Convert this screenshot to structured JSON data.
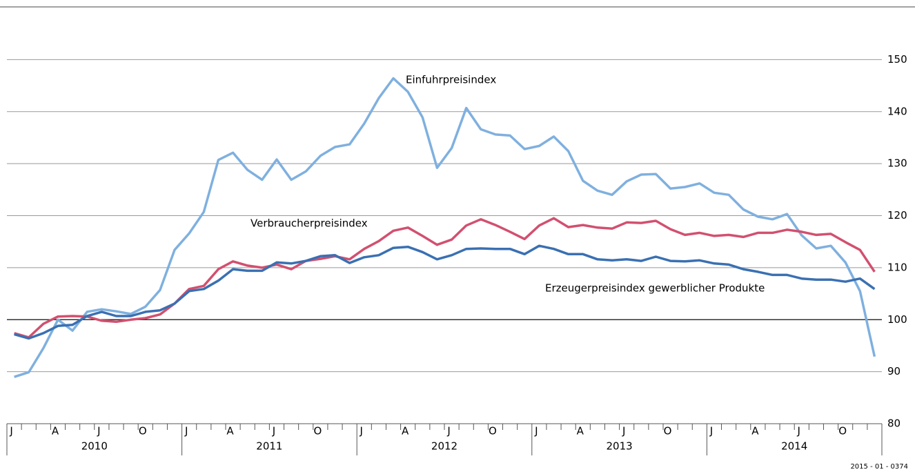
{
  "chart_data": {
    "type": "line",
    "categories": [
      "J",
      null,
      null,
      "A",
      null,
      null,
      "J",
      null,
      null,
      "O",
      null,
      null,
      "J",
      null,
      null,
      "A",
      null,
      null,
      "J",
      null,
      null,
      "O",
      null,
      null,
      "J",
      null,
      null,
      "A",
      null,
      null,
      "J",
      null,
      null,
      "O",
      null,
      null,
      "J",
      null,
      null,
      "A",
      null,
      null,
      "J",
      null,
      null,
      "O",
      null,
      null,
      "J",
      null,
      null,
      "A",
      null,
      null,
      "J",
      null,
      null,
      "O",
      null,
      null
    ],
    "years": [
      "2010",
      "2011",
      "2012",
      "2013",
      "2014"
    ],
    "series": [
      {
        "name": "Einfuhrpreisindex",
        "color": "#7fb0df",
        "values": [
          89.0,
          89.9,
          94.5,
          100.0,
          97.9,
          101.5,
          102.0,
          101.6,
          101.1,
          102.5,
          105.7,
          113.4,
          116.6,
          120.7,
          130.7,
          132.1,
          128.8,
          126.9,
          130.8,
          126.9,
          128.5,
          131.5,
          133.2,
          133.7,
          137.7,
          142.6,
          146.4,
          143.8,
          138.9,
          129.2,
          133.0,
          140.7,
          136.6,
          135.6,
          135.4,
          132.8,
          133.4,
          135.2,
          132.4,
          126.7,
          124.8,
          124.0,
          126.6,
          127.9,
          128.0,
          125.2,
          125.5,
          126.2,
          124.4,
          124.0,
          121.2,
          119.8,
          119.3,
          120.3,
          116.2,
          113.7,
          114.2,
          111.0,
          105.5,
          92.9
        ]
      },
      {
        "name": "Verbraucherpreisindex",
        "color": "#d2506f",
        "values": [
          97.4,
          96.6,
          99.2,
          100.6,
          100.7,
          100.6,
          99.8,
          99.6,
          100.0,
          100.3,
          101.0,
          103.1,
          105.9,
          106.5,
          109.7,
          111.2,
          110.4,
          110.0,
          110.6,
          109.7,
          111.3,
          111.7,
          112.2,
          111.6,
          113.6,
          115.1,
          117.1,
          117.7,
          116.1,
          114.4,
          115.4,
          118.1,
          119.3,
          118.2,
          116.9,
          115.5,
          118.1,
          119.5,
          117.8,
          118.2,
          117.7,
          117.5,
          118.7,
          118.6,
          119.0,
          117.4,
          116.3,
          116.7,
          116.1,
          116.3,
          115.9,
          116.7,
          116.7,
          117.3,
          116.9,
          116.3,
          116.5,
          114.9,
          113.4,
          109.2
        ]
      },
      {
        "name": "Erzeugerpreisindex gewerblicher Produkte",
        "color": "#3a70b2",
        "values": [
          97.2,
          96.4,
          97.4,
          98.8,
          99.0,
          100.7,
          101.5,
          100.7,
          100.7,
          101.5,
          101.8,
          103.1,
          105.5,
          105.9,
          107.5,
          109.7,
          109.4,
          109.4,
          111.0,
          110.8,
          111.3,
          112.2,
          112.4,
          110.9,
          112.0,
          112.4,
          113.8,
          114.0,
          113.0,
          111.6,
          112.4,
          113.6,
          113.7,
          113.6,
          113.6,
          112.6,
          114.2,
          113.6,
          112.6,
          112.6,
          111.6,
          111.4,
          111.6,
          111.3,
          112.1,
          111.3,
          111.2,
          111.4,
          110.8,
          110.6,
          109.7,
          109.2,
          108.6,
          108.6,
          107.9,
          107.7,
          107.7,
          107.3,
          107.9,
          105.9
        ]
      }
    ],
    "ylim": [
      80,
      160
    ],
    "yticks": [
      80,
      90,
      100,
      110,
      120,
      130,
      140,
      150
    ],
    "grid": true,
    "reference_line": 100,
    "source_note": "2015 - 01 - 0374"
  }
}
